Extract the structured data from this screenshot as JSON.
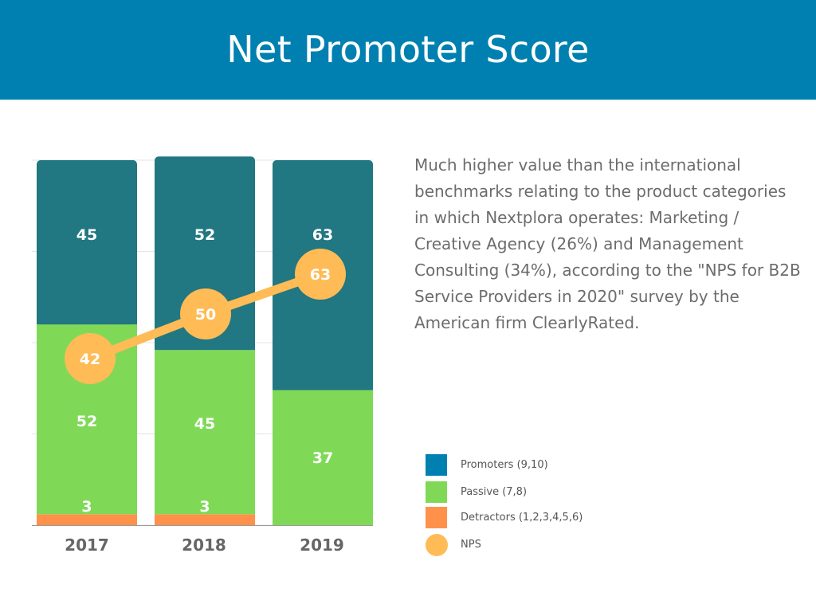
{
  "title": "Net Promoter Score",
  "description": "Much higher value than the international benchmarks relating to the product categories in which Nextplora operates: Marketing / Creative Agency (26%) and Management Consulting (34%), according to the \"NPS for B2B Service Providers in 2020\" survey by the American firm ClearlyRated.",
  "colors": {
    "header": "#0080B0",
    "promoters_bar": "#217782",
    "passive": "#7FD957",
    "detractors": "#FF914A",
    "nps": "#FFBB55",
    "promoters_legend": "#0080B0"
  },
  "legend": [
    {
      "label": "Promoters (9,10)",
      "color": "#0080B0",
      "shape": "square"
    },
    {
      "label": "Passive (7,8)",
      "color": "#7FD957",
      "shape": "square"
    },
    {
      "label": "Detractors (1,2,3,4,5,6)",
      "color": "#FF914A",
      "shape": "square"
    },
    {
      "label": "NPS",
      "color": "#FFBB55",
      "shape": "circle"
    }
  ],
  "chart_data": {
    "type": "bar",
    "stacked": true,
    "categories": [
      "2017",
      "2018",
      "2019"
    ],
    "series": [
      {
        "name": "Detractors (1,2,3,4,5,6)",
        "values": [
          3,
          3,
          0
        ],
        "labels": [
          "3",
          "3",
          ""
        ]
      },
      {
        "name": "Passive (7,8)",
        "values": [
          52,
          45,
          37
        ],
        "labels": [
          "52",
          "45",
          "37"
        ]
      },
      {
        "name": "Promoters (9,10)",
        "values": [
          45,
          52,
          63
        ],
        "labels": [
          "45",
          "52",
          "63"
        ]
      }
    ],
    "line": {
      "name": "NPS",
      "values": [
        42,
        50,
        63
      ],
      "labels": [
        "42",
        "50",
        "63"
      ]
    },
    "ylim": [
      0,
      100
    ],
    "grid": true,
    "title": "",
    "xlabel": "",
    "ylabel": ""
  }
}
